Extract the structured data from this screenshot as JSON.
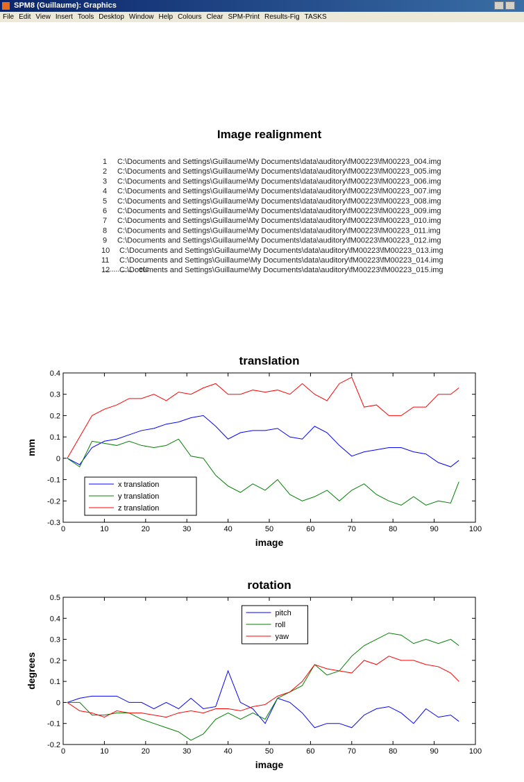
{
  "window_title": "SPM8 (Guillaume): Graphics",
  "menu": [
    "File",
    "Edit",
    "View",
    "Insert",
    "Tools",
    "Desktop",
    "Window",
    "Help",
    "Colours",
    "Clear",
    "SPM-Print",
    "Results-Fig",
    "TASKS"
  ],
  "header": {
    "title": "Image realignment"
  },
  "files": [
    {
      "index": 1,
      "path": "C:\\Documents and Settings\\Guillaume\\My Documents\\data\\auditory\\fM00223\\fM00223_004.img"
    },
    {
      "index": 2,
      "path": "C:\\Documents and Settings\\Guillaume\\My Documents\\data\\auditory\\fM00223\\fM00223_005.img"
    },
    {
      "index": 3,
      "path": "C:\\Documents and Settings\\Guillaume\\My Documents\\data\\auditory\\fM00223\\fM00223_006.img"
    },
    {
      "index": 4,
      "path": "C:\\Documents and Settings\\Guillaume\\My Documents\\data\\auditory\\fM00223\\fM00223_007.img"
    },
    {
      "index": 5,
      "path": "C:\\Documents and Settings\\Guillaume\\My Documents\\data\\auditory\\fM00223\\fM00223_008.img"
    },
    {
      "index": 6,
      "path": "C:\\Documents and Settings\\Guillaume\\My Documents\\data\\auditory\\fM00223\\fM00223_009.img"
    },
    {
      "index": 7,
      "path": "C:\\Documents and Settings\\Guillaume\\My Documents\\data\\auditory\\fM00223\\fM00223_010.img"
    },
    {
      "index": 8,
      "path": "C:\\Documents and Settings\\Guillaume\\My Documents\\data\\auditory\\fM00223\\fM00223_011.img"
    },
    {
      "index": 9,
      "path": "C:\\Documents and Settings\\Guillaume\\My Documents\\data\\auditory\\fM00223\\fM00223_012.img"
    },
    {
      "index": 10,
      "path": "C:\\Documents and Settings\\Guillaume\\My Documents\\data\\auditory\\fM00223\\fM00223_013.img"
    },
    {
      "index": 11,
      "path": "C:\\Documents and Settings\\Guillaume\\My Documents\\data\\auditory\\fM00223\\fM00223_014.img"
    },
    {
      "index": 12,
      "path": "C:\\Documents and Settings\\Guillaume\\My Documents\\data\\auditory\\fM00223\\fM00223_015.img"
    }
  ],
  "files_more": "................ etc",
  "chart_data": [
    {
      "type": "line",
      "title": "translation",
      "xlabel": "image",
      "ylabel": "mm",
      "x": [
        1,
        4,
        7,
        10,
        13,
        16,
        19,
        22,
        25,
        28,
        31,
        34,
        37,
        40,
        43,
        46,
        49,
        52,
        55,
        58,
        61,
        64,
        67,
        70,
        73,
        76,
        79,
        82,
        85,
        88,
        91,
        94,
        96
      ],
      "series": [
        {
          "name": "x translation",
          "color": "#0000ff",
          "values": [
            0,
            -0.03,
            0.05,
            0.08,
            0.09,
            0.11,
            0.13,
            0.14,
            0.16,
            0.17,
            0.19,
            0.2,
            0.15,
            0.09,
            0.12,
            0.13,
            0.13,
            0.14,
            0.1,
            0.09,
            0.15,
            0.12,
            0.06,
            0.01,
            0.03,
            0.04,
            0.05,
            0.05,
            0.03,
            0.02,
            -0.02,
            -0.04,
            -0.01
          ]
        },
        {
          "name": "y translation",
          "color": "#008000",
          "values": [
            0,
            -0.04,
            0.08,
            0.07,
            0.06,
            0.08,
            0.06,
            0.05,
            0.06,
            0.09,
            0.01,
            0,
            -0.08,
            -0.13,
            -0.16,
            -0.12,
            -0.15,
            -0.1,
            -0.17,
            -0.2,
            -0.18,
            -0.15,
            -0.2,
            -0.15,
            -0.12,
            -0.17,
            -0.2,
            -0.22,
            -0.18,
            -0.22,
            -0.2,
            -0.21,
            -0.11
          ]
        },
        {
          "name": "z translation",
          "color": "#ff0000",
          "values": [
            0,
            0.1,
            0.2,
            0.23,
            0.25,
            0.28,
            0.28,
            0.3,
            0.27,
            0.31,
            0.3,
            0.33,
            0.35,
            0.3,
            0.3,
            0.32,
            0.31,
            0.32,
            0.3,
            0.35,
            0.3,
            0.27,
            0.35,
            0.38,
            0.24,
            0.25,
            0.2,
            0.2,
            0.24,
            0.24,
            0.3,
            0.3,
            0.33
          ]
        }
      ],
      "xlim": [
        0,
        100
      ],
      "xticks": [
        0,
        10,
        20,
        30,
        40,
        50,
        60,
        70,
        80,
        90,
        100
      ],
      "ylim": [
        -0.3,
        0.4
      ],
      "yticks": [
        -0.3,
        -0.2,
        -0.1,
        0,
        0.1,
        0.2,
        0.3,
        0.4
      ],
      "legend": "lower left"
    },
    {
      "type": "line",
      "title": "rotation",
      "xlabel": "image",
      "ylabel": "degrees",
      "x": [
        1,
        4,
        7,
        10,
        13,
        16,
        19,
        22,
        25,
        28,
        31,
        34,
        37,
        40,
        43,
        46,
        49,
        52,
        55,
        58,
        61,
        64,
        67,
        70,
        73,
        76,
        79,
        82,
        85,
        88,
        91,
        94,
        96
      ],
      "series": [
        {
          "name": "pitch",
          "color": "#0000ff",
          "values": [
            0,
            0.02,
            0.03,
            0.03,
            0.03,
            0,
            0,
            -0.03,
            0,
            -0.03,
            0.02,
            -0.03,
            -0.02,
            0.15,
            0,
            -0.03,
            -0.1,
            0.02,
            0,
            -0.05,
            -0.12,
            -0.1,
            -0.1,
            -0.12,
            -0.06,
            -0.03,
            -0.02,
            -0.05,
            -0.1,
            -0.03,
            -0.07,
            -0.06,
            -0.09
          ]
        },
        {
          "name": "roll",
          "color": "#008000",
          "values": [
            0,
            0,
            -0.06,
            -0.06,
            -0.05,
            -0.05,
            -0.08,
            -0.1,
            -0.12,
            -0.14,
            -0.18,
            -0.15,
            -0.08,
            -0.05,
            -0.08,
            -0.05,
            -0.08,
            0.02,
            0.05,
            0.08,
            0.18,
            0.13,
            0.15,
            0.22,
            0.27,
            0.3,
            0.33,
            0.32,
            0.28,
            0.3,
            0.28,
            0.3,
            0.27
          ]
        },
        {
          "name": "yaw",
          "color": "#ff0000",
          "values": [
            0,
            -0.04,
            -0.05,
            -0.07,
            -0.04,
            -0.05,
            -0.05,
            -0.06,
            -0.07,
            -0.05,
            -0.04,
            -0.05,
            -0.03,
            -0.03,
            -0.04,
            -0.02,
            -0.01,
            0.03,
            0.05,
            0.1,
            0.18,
            0.16,
            0.15,
            0.14,
            0.2,
            0.18,
            0.22,
            0.2,
            0.2,
            0.18,
            0.17,
            0.14,
            0.1
          ]
        }
      ],
      "xlim": [
        0,
        100
      ],
      "xticks": [
        0,
        10,
        20,
        30,
        40,
        50,
        60,
        70,
        80,
        90,
        100
      ],
      "ylim": [
        -0.2,
        0.5
      ],
      "yticks": [
        -0.2,
        -0.1,
        0,
        0.1,
        0.2,
        0.3,
        0.4,
        0.5
      ],
      "legend": "upper center"
    }
  ]
}
